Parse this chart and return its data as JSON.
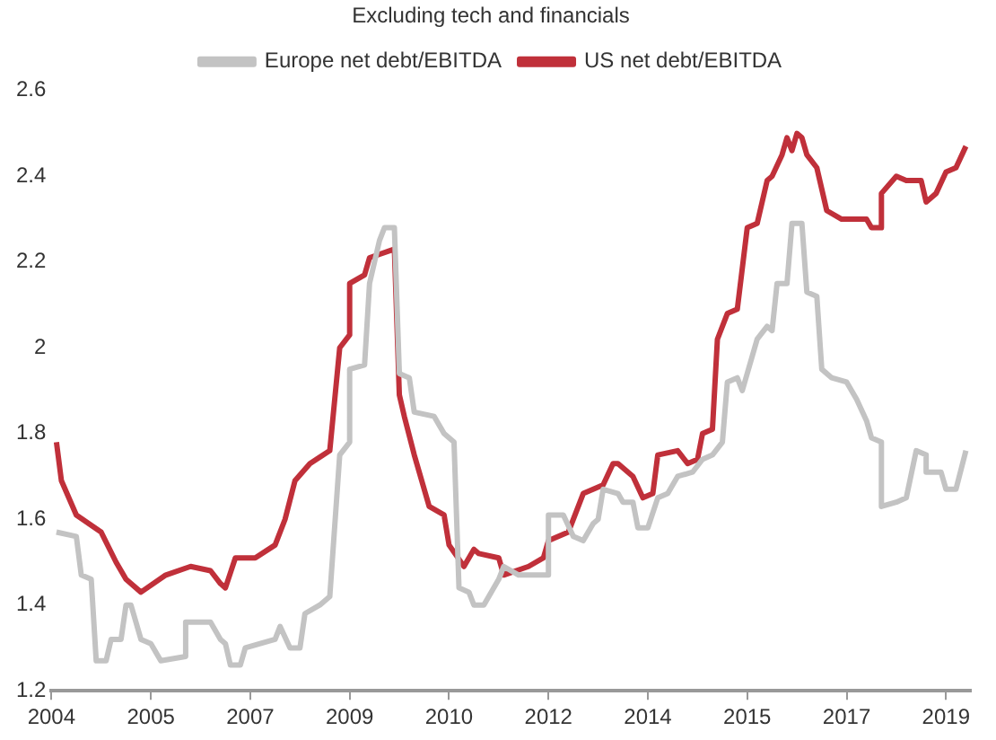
{
  "chart_data": {
    "type": "line",
    "subtitle": "Excluding tech and financials",
    "xlim": [
      "2004-01",
      "2019-06"
    ],
    "xticks": [
      {
        "value": "2004-01",
        "label": "2004"
      },
      {
        "value": "2005-09",
        "label": "2005"
      },
      {
        "value": "2007-05",
        "label": "2007"
      },
      {
        "value": "2009-01",
        "label": "2009"
      },
      {
        "value": "2010-09",
        "label": "2010"
      },
      {
        "value": "2012-05",
        "label": "2012"
      },
      {
        "value": "2014-01",
        "label": "2014"
      },
      {
        "value": "2015-09",
        "label": "2015"
      },
      {
        "value": "2017-05",
        "label": "2017"
      },
      {
        "value": "2019-01",
        "label": "2019"
      }
    ],
    "ylim": [
      1.2,
      2.6
    ],
    "yticks": [
      1.2,
      1.4,
      1.6,
      1.8,
      2,
      2.2,
      2.4,
      2.6
    ],
    "grid": false,
    "legend": "top",
    "marker": "none",
    "line_style": "solid",
    "series": [
      {
        "name": "Europe net debt/EBITDA",
        "color": "#c3c3c3",
        "x": [
          "2004-02",
          "2004-06",
          "2004-07",
          "2004-09",
          "2004-10",
          "2004-12",
          "2005-01",
          "2005-03",
          "2005-04",
          "2005-05",
          "2005-07",
          "2005-09",
          "2005-11",
          "2006-04",
          "2006-04",
          "2006-09",
          "2006-11",
          "2006-12",
          "2007-01",
          "2007-03",
          "2007-04",
          "2007-07",
          "2007-10",
          "2007-11",
          "2008-01",
          "2008-03",
          "2008-04",
          "2008-07",
          "2008-09",
          "2008-11",
          "2009-01",
          "2009-01",
          "2009-04",
          "2009-05",
          "2009-07",
          "2009-08",
          "2009-10",
          "2009-11",
          "2010-01",
          "2010-02",
          "2010-06",
          "2010-08",
          "2010-10",
          "2010-11",
          "2011-01",
          "2011-02",
          "2011-04",
          "2011-07",
          "2011-08",
          "2011-11",
          "2012-03",
          "2012-05",
          "2012-05",
          "2012-08",
          "2012-10",
          "2012-12",
          "2013-02",
          "2013-03",
          "2013-04",
          "2013-07",
          "2013-08",
          "2013-10",
          "2013-11",
          "2014-01",
          "2014-03",
          "2014-05",
          "2014-07",
          "2014-10",
          "2014-12",
          "2015-02",
          "2015-04",
          "2015-05",
          "2015-07",
          "2015-08",
          "2015-11",
          "2016-01",
          "2016-02",
          "2016-03",
          "2016-05",
          "2016-06",
          "2016-08",
          "2016-09",
          "2016-11",
          "2016-12",
          "2017-02",
          "2017-05",
          "2017-07",
          "2017-09",
          "2017-10",
          "2017-12",
          "2017-12",
          "2018-03",
          "2018-05",
          "2018-07",
          "2018-09",
          "2018-09",
          "2018-12",
          "2019-01",
          "2019-03",
          "2019-05"
        ],
        "values": [
          1.57,
          1.56,
          1.47,
          1.46,
          1.27,
          1.27,
          1.32,
          1.32,
          1.4,
          1.4,
          1.32,
          1.31,
          1.27,
          1.28,
          1.36,
          1.36,
          1.32,
          1.31,
          1.26,
          1.26,
          1.3,
          1.31,
          1.32,
          1.35,
          1.3,
          1.3,
          1.38,
          1.4,
          1.42,
          1.75,
          1.78,
          1.95,
          1.96,
          2.15,
          2.25,
          2.28,
          2.28,
          1.94,
          1.93,
          1.85,
          1.84,
          1.8,
          1.78,
          1.44,
          1.43,
          1.4,
          1.4,
          1.46,
          1.49,
          1.47,
          1.47,
          1.47,
          1.61,
          1.61,
          1.56,
          1.55,
          1.59,
          1.6,
          1.67,
          1.66,
          1.64,
          1.64,
          1.58,
          1.58,
          1.65,
          1.66,
          1.7,
          1.71,
          1.74,
          1.75,
          1.78,
          1.92,
          1.93,
          1.9,
          2.02,
          2.05,
          2.04,
          2.15,
          2.15,
          2.29,
          2.29,
          2.13,
          2.12,
          1.95,
          1.93,
          1.92,
          1.88,
          1.83,
          1.79,
          1.78,
          1.63,
          1.64,
          1.65,
          1.76,
          1.75,
          1.71,
          1.71,
          1.67,
          1.67,
          1.76
        ]
      },
      {
        "name": "US net debt/EBITDA",
        "color": "#c0303a",
        "x": [
          "2004-02",
          "2004-03",
          "2004-06",
          "2004-11",
          "2005-02",
          "2005-04",
          "2005-07",
          "2005-12",
          "2006-05",
          "2006-09",
          "2006-11",
          "2006-12",
          "2007-02",
          "2007-06",
          "2007-10",
          "2007-12",
          "2008-02",
          "2008-05",
          "2008-09",
          "2008-10",
          "2008-11",
          "2009-01",
          "2009-01",
          "2009-04",
          "2009-05",
          "2009-10",
          "2009-11",
          "2009-12",
          "2010-02",
          "2010-05",
          "2010-08",
          "2010-09",
          "2010-12",
          "2011-02",
          "2011-03",
          "2011-07",
          "2011-08",
          "2012-01",
          "2012-04",
          "2012-05",
          "2012-09",
          "2012-12",
          "2013-02",
          "2013-04",
          "2013-06",
          "2013-07",
          "2013-10",
          "2013-12",
          "2014-02",
          "2014-03",
          "2014-07",
          "2014-09",
          "2014-11",
          "2014-12",
          "2015-02",
          "2015-03",
          "2015-05",
          "2015-07",
          "2015-09",
          "2015-11",
          "2016-01",
          "2016-02",
          "2016-04",
          "2016-05",
          "2016-06",
          "2016-07",
          "2016-08",
          "2016-09",
          "2016-11",
          "2017-01",
          "2017-04",
          "2017-09",
          "2017-10",
          "2017-12",
          "2017-12",
          "2018-03",
          "2018-05",
          "2018-08",
          "2018-09",
          "2018-11",
          "2019-01",
          "2019-03",
          "2019-05"
        ],
        "values": [
          1.78,
          1.69,
          1.61,
          1.57,
          1.5,
          1.46,
          1.43,
          1.47,
          1.49,
          1.48,
          1.45,
          1.44,
          1.51,
          1.51,
          1.54,
          1.6,
          1.69,
          1.73,
          1.76,
          1.88,
          2.0,
          2.03,
          2.15,
          2.17,
          2.21,
          2.23,
          1.89,
          1.84,
          1.75,
          1.63,
          1.61,
          1.54,
          1.49,
          1.53,
          1.52,
          1.51,
          1.47,
          1.49,
          1.51,
          1.55,
          1.57,
          1.66,
          1.67,
          1.68,
          1.73,
          1.73,
          1.7,
          1.65,
          1.66,
          1.75,
          1.76,
          1.73,
          1.74,
          1.8,
          1.81,
          2.02,
          2.08,
          2.09,
          2.28,
          2.29,
          2.39,
          2.4,
          2.45,
          2.49,
          2.46,
          2.5,
          2.49,
          2.45,
          2.42,
          2.32,
          2.3,
          2.3,
          2.28,
          2.28,
          2.36,
          2.4,
          2.39,
          2.39,
          2.34,
          2.36,
          2.41,
          2.42,
          2.47
        ]
      }
    ]
  }
}
